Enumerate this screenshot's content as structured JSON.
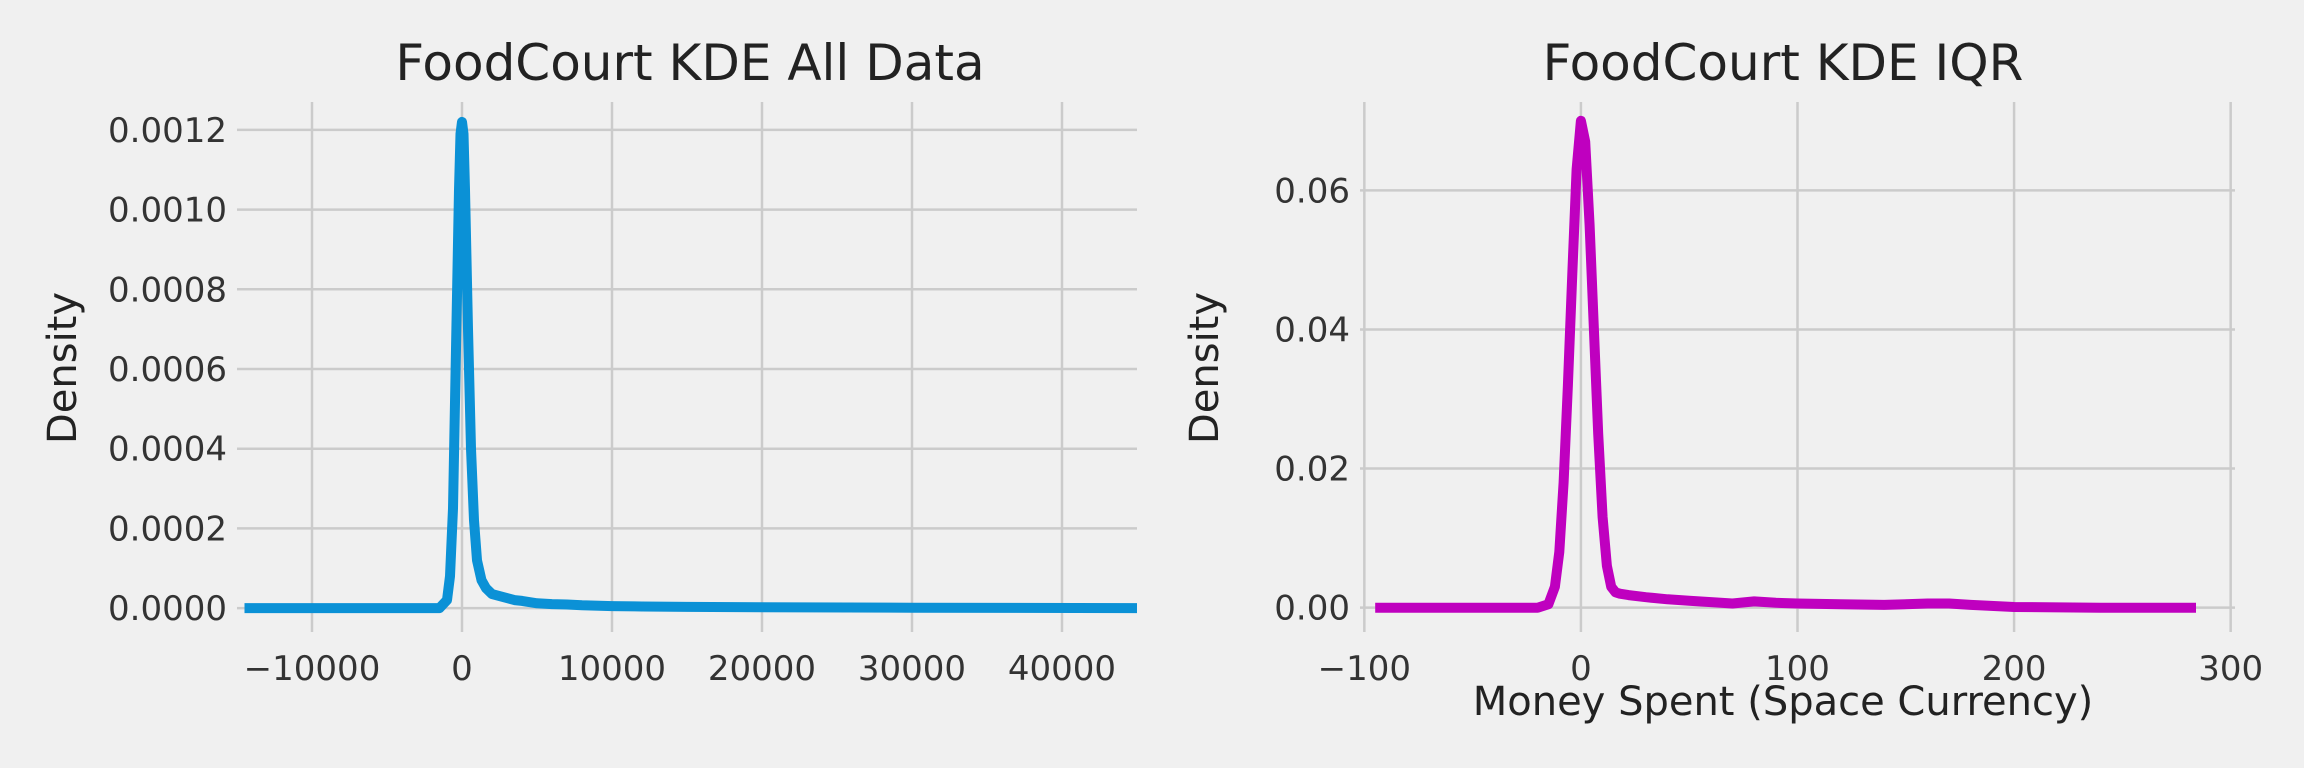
{
  "chart_data": [
    {
      "type": "line",
      "title": "FoodCourt KDE All Data",
      "xlabel": "",
      "ylabel": "Density",
      "xlim": [
        -15000,
        45000
      ],
      "ylim": [
        -6e-05,
        0.00127
      ],
      "xticks": [
        -10000,
        0,
        10000,
        20000,
        30000,
        40000
      ],
      "xtick_labels": [
        "−10000",
        "0",
        "10000",
        "20000",
        "30000",
        "40000"
      ],
      "yticks": [
        0,
        0.0002,
        0.0004,
        0.0006,
        0.0008,
        0.001,
        0.0012
      ],
      "ytick_labels": [
        "0.0000",
        "0.0002",
        "0.0004",
        "0.0006",
        "0.0008",
        "0.0010",
        "0.0012"
      ],
      "grid": true,
      "color": "#0b91d6",
      "series": [
        {
          "x": [
            -14500,
            -5000,
            -1500,
            -1000,
            -800,
            -600,
            -400,
            -200,
            -100,
            0,
            100,
            200,
            400,
            600,
            800,
            1000,
            1300,
            1600,
            2000,
            2500,
            3000,
            3500,
            4000,
            5000,
            6000,
            7000,
            8000,
            10000,
            12000,
            15000,
            20000,
            30000,
            45000
          ],
          "y": [
            0,
            0,
            0,
            2e-05,
            8e-05,
            0.00025,
            0.00065,
            0.00105,
            0.00119,
            0.00122,
            0.00119,
            0.00105,
            0.0007,
            0.0004,
            0.00022,
            0.00012,
            7e-05,
            5e-05,
            3.5e-05,
            3e-05,
            2.5e-05,
            2e-05,
            1.8e-05,
            1.2e-05,
            1e-05,
            9e-06,
            7e-06,
            5e-06,
            4e-06,
            3e-06,
            2e-06,
            1e-06,
            0
          ]
        }
      ]
    },
    {
      "type": "line",
      "title": "FoodCourt KDE IQR",
      "xlabel": "Money Spent (Space Currency)",
      "ylabel": "Density",
      "xlim": [
        -102,
        302
      ],
      "ylim": [
        -0.0035,
        0.0727
      ],
      "xticks": [
        -100,
        0,
        100,
        200,
        300
      ],
      "xtick_labels": [
        "−100",
        "0",
        "100",
        "200",
        "300"
      ],
      "yticks": [
        0,
        0.02,
        0.04,
        0.06
      ],
      "ytick_labels": [
        "0.00",
        "0.02",
        "0.04",
        "0.06"
      ],
      "grid": true,
      "color": "#bf00bf",
      "series": [
        {
          "x": [
            -95,
            -40,
            -20,
            -15,
            -12,
            -10,
            -8,
            -6,
            -4,
            -2,
            0,
            2,
            4,
            6,
            8,
            10,
            12,
            14,
            16,
            18,
            22,
            30,
            40,
            50,
            60,
            70,
            80,
            90,
            100,
            120,
            140,
            160,
            170,
            180,
            200,
            240,
            284
          ],
          "y": [
            0,
            0,
            0,
            0.0005,
            0.003,
            0.008,
            0.018,
            0.032,
            0.048,
            0.063,
            0.07,
            0.067,
            0.055,
            0.04,
            0.025,
            0.013,
            0.006,
            0.003,
            0.0022,
            0.002,
            0.0018,
            0.0015,
            0.0012,
            0.001,
            0.0008,
            0.0006,
            0.0009,
            0.0007,
            0.0006,
            0.0005,
            0.0004,
            0.0006,
            0.0006,
            0.0004,
            0.0001,
            0,
            0
          ]
        }
      ]
    }
  ]
}
